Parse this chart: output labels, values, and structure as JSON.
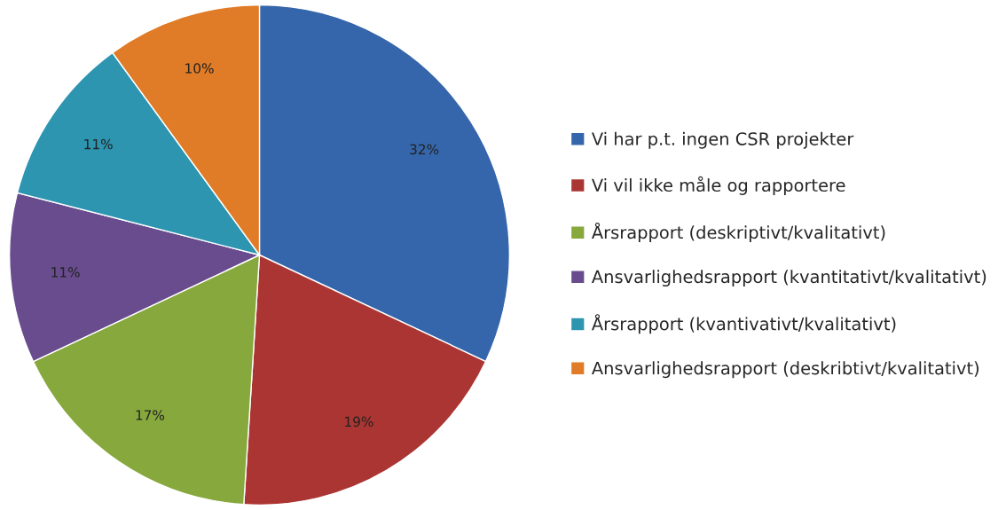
{
  "chart_data": {
    "type": "pie",
    "categories": [
      "Vi har p.t. ingen CSR projekter",
      "Vi vil ikke måle og rapportere",
      "Årsrapport (deskriptivt/kvalitativt)",
      "Ansvarlighedsrapport (kvantitativt/kvalitativt)",
      "Årsrapport (kvantivativt/kvalitativt)",
      "Ansvarlighedsrapport (deskribtivt/kvalitativt)"
    ],
    "values": [
      32,
      19,
      17,
      11,
      11,
      10
    ],
    "colors": [
      "#3566ab",
      "#ab3532",
      "#86a83d",
      "#684c8e",
      "#2d95b0",
      "#e07b27"
    ],
    "value_labels": [
      "32%",
      "19%",
      "17%",
      "11%",
      "11%",
      "10%"
    ],
    "legend": "right"
  }
}
